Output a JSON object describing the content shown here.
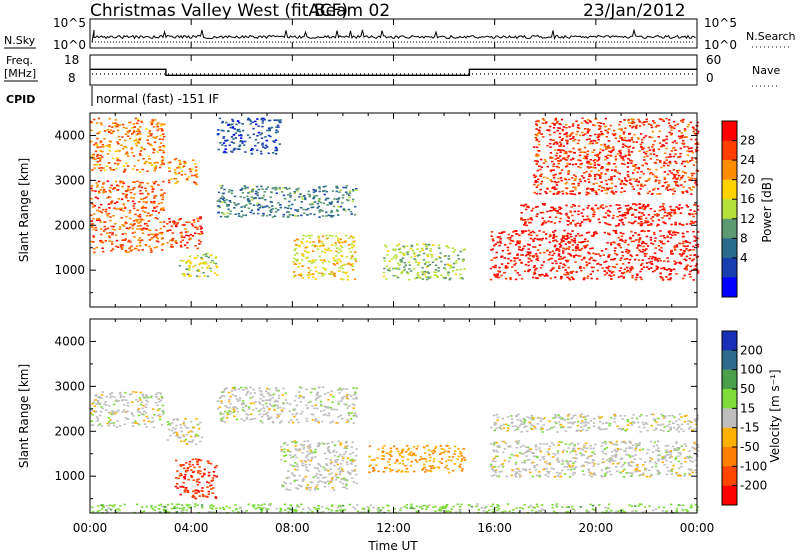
{
  "header": {
    "station": "Christmas Valley West (fitACF)",
    "beam": "Beam 02",
    "date": "23/Jan/2012",
    "cpid_text": "normal (fast) -151 IF"
  },
  "strip_labels": {
    "nsky": "N.Sky",
    "nsearch": "N.Search",
    "freq_line1": "Freq.",
    "freq_line2": "[MHz]",
    "nave": "Nave",
    "cpid": "CPID"
  },
  "strip_ticks": {
    "noise_left": [
      "10^5",
      "10^0"
    ],
    "noise_right": [
      "10^5",
      "10^0"
    ],
    "freq_left": [
      "18",
      "8"
    ],
    "freq_right": [
      "60",
      "0"
    ]
  },
  "colorbars": {
    "power": {
      "label": "Power [dB]",
      "ticks": [
        "28",
        "24",
        "20",
        "16",
        "12",
        "8",
        "4"
      ],
      "colors": [
        "#ff0000",
        "#ff3f00",
        "#ff8c00",
        "#ffd200",
        "#b6e03a",
        "#5c9a73",
        "#2a6b8c",
        "#1a3fb0",
        "#0000ff"
      ]
    },
    "velocity": {
      "label": "Velocity [m s⁻¹]",
      "ticks": [
        "200",
        "100",
        "50",
        "15",
        "-15",
        "-50",
        "-100",
        "-200"
      ],
      "colors": [
        "#1a2fb8",
        "#2d6b8c",
        "#4aa04a",
        "#7ddc3a",
        "#bebebe",
        "#ffb000",
        "#ff8000",
        "#ff4500",
        "#ff0000"
      ]
    }
  },
  "chart_data": {
    "type": "heatmap",
    "title": "Christmas Valley West (fitACF)",
    "xlabel": "Time UT",
    "x_ticks": [
      "00:00",
      "04:00",
      "08:00",
      "12:00",
      "16:00",
      "20:00",
      "00:00"
    ],
    "xlim_hours": [
      0,
      24
    ],
    "ylabel": "Slant Range [km]",
    "y_ticks": [
      1000,
      2000,
      3000,
      4000
    ],
    "ylim_km": [
      180,
      4500
    ],
    "panels": [
      {
        "name": "Power",
        "unit": "dB",
        "scale": [
          0,
          30
        ],
        "echo_regions": [
          {
            "t": [
              0.0,
              2.9
            ],
            "range_km": [
              1400,
              3000
            ],
            "value": 24
          },
          {
            "t": [
              0.0,
              2.9
            ],
            "range_km": [
              3200,
              4400
            ],
            "value": 22
          },
          {
            "t": [
              3.0,
              4.4
            ],
            "range_km": [
              1500,
              2200
            ],
            "value": 26
          },
          {
            "t": [
              3.0,
              4.2
            ],
            "range_km": [
              2900,
              3500
            ],
            "value": 22
          },
          {
            "t": [
              3.5,
              5.0
            ],
            "range_km": [
              850,
              1400
            ],
            "value": 16
          },
          {
            "t": [
              5.0,
              10.5
            ],
            "range_km": [
              2200,
              2900
            ],
            "value": 10
          },
          {
            "t": [
              5.0,
              7.5
            ],
            "range_km": [
              3600,
              4400
            ],
            "value": 6
          },
          {
            "t": [
              8.0,
              10.5
            ],
            "range_km": [
              800,
              1800
            ],
            "value": 18
          },
          {
            "t": [
              11.5,
              14.8
            ],
            "range_km": [
              800,
              1600
            ],
            "value": 14
          },
          {
            "t": [
              15.8,
              24.0
            ],
            "range_km": [
              800,
              1900
            ],
            "value": 28
          },
          {
            "t": [
              17.0,
              24.0
            ],
            "range_km": [
              2000,
              2500
            ],
            "value": 28
          },
          {
            "t": [
              17.5,
              24.0
            ],
            "range_km": [
              2700,
              4400
            ],
            "value": 26
          }
        ]
      },
      {
        "name": "Velocity",
        "unit": "m/s",
        "scale": [
          -200,
          200
        ],
        "echo_regions": [
          {
            "t": [
              0.0,
              2.9
            ],
            "range_km": [
              2100,
              2900
            ],
            "value": 0
          },
          {
            "t": [
              3.0,
              4.4
            ],
            "range_km": [
              1700,
              2300
            ],
            "value": 0
          },
          {
            "t": [
              3.3,
              5.0
            ],
            "range_km": [
              500,
              1400
            ],
            "value": -150
          },
          {
            "t": [
              5.0,
              10.5
            ],
            "range_km": [
              2200,
              3000
            ],
            "value": 0
          },
          {
            "t": [
              7.5,
              10.5
            ],
            "range_km": [
              700,
              1800
            ],
            "value": 0
          },
          {
            "t": [
              11.0,
              14.8
            ],
            "range_km": [
              1100,
              1700
            ],
            "value": -60
          },
          {
            "t": [
              15.8,
              24.0
            ],
            "range_km": [
              1000,
              1800
            ],
            "value": 0
          },
          {
            "t": [
              15.8,
              24.0
            ],
            "range_km": [
              2000,
              2400
            ],
            "value": 0
          },
          {
            "t": [
              0.0,
              24.0
            ],
            "range_km": [
              200,
              400
            ],
            "value": 40
          }
        ]
      }
    ],
    "frequency_mhz": [
      {
        "t": [
          0.0,
          3.0
        ],
        "value": 13.3
      },
      {
        "t": [
          3.0,
          15.0
        ],
        "value": 10.8
      },
      {
        "t": [
          15.0,
          24.0
        ],
        "value": 13.3
      }
    ],
    "grid": false
  }
}
